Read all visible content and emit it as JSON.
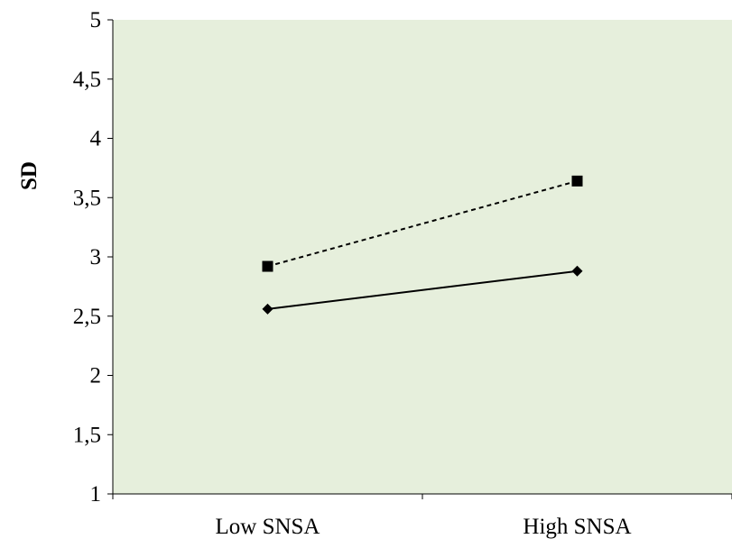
{
  "chart_data": {
    "type": "line",
    "title": "",
    "xlabel": "",
    "ylabel": "SD",
    "categories": [
      "Low SNSA",
      "High SNSA"
    ],
    "ylim": [
      1,
      5
    ],
    "yticks": [
      "1",
      "1,5",
      "2",
      "2,5",
      "3",
      "3,5",
      "4",
      "4,5",
      "5"
    ],
    "ytick_values": [
      1,
      1.5,
      2,
      2.5,
      3,
      3.5,
      4,
      4.5,
      5
    ],
    "grid": false,
    "legend": "none",
    "series": [
      {
        "values": [
          2.56,
          2.88
        ],
        "marker": "diamond",
        "line_style": "solid",
        "color": "#000000"
      },
      {
        "values": [
          2.92,
          3.64
        ],
        "marker": "square",
        "line_style": "dashed",
        "color": "#000000"
      }
    ],
    "plot_background": "#e6efdc"
  }
}
